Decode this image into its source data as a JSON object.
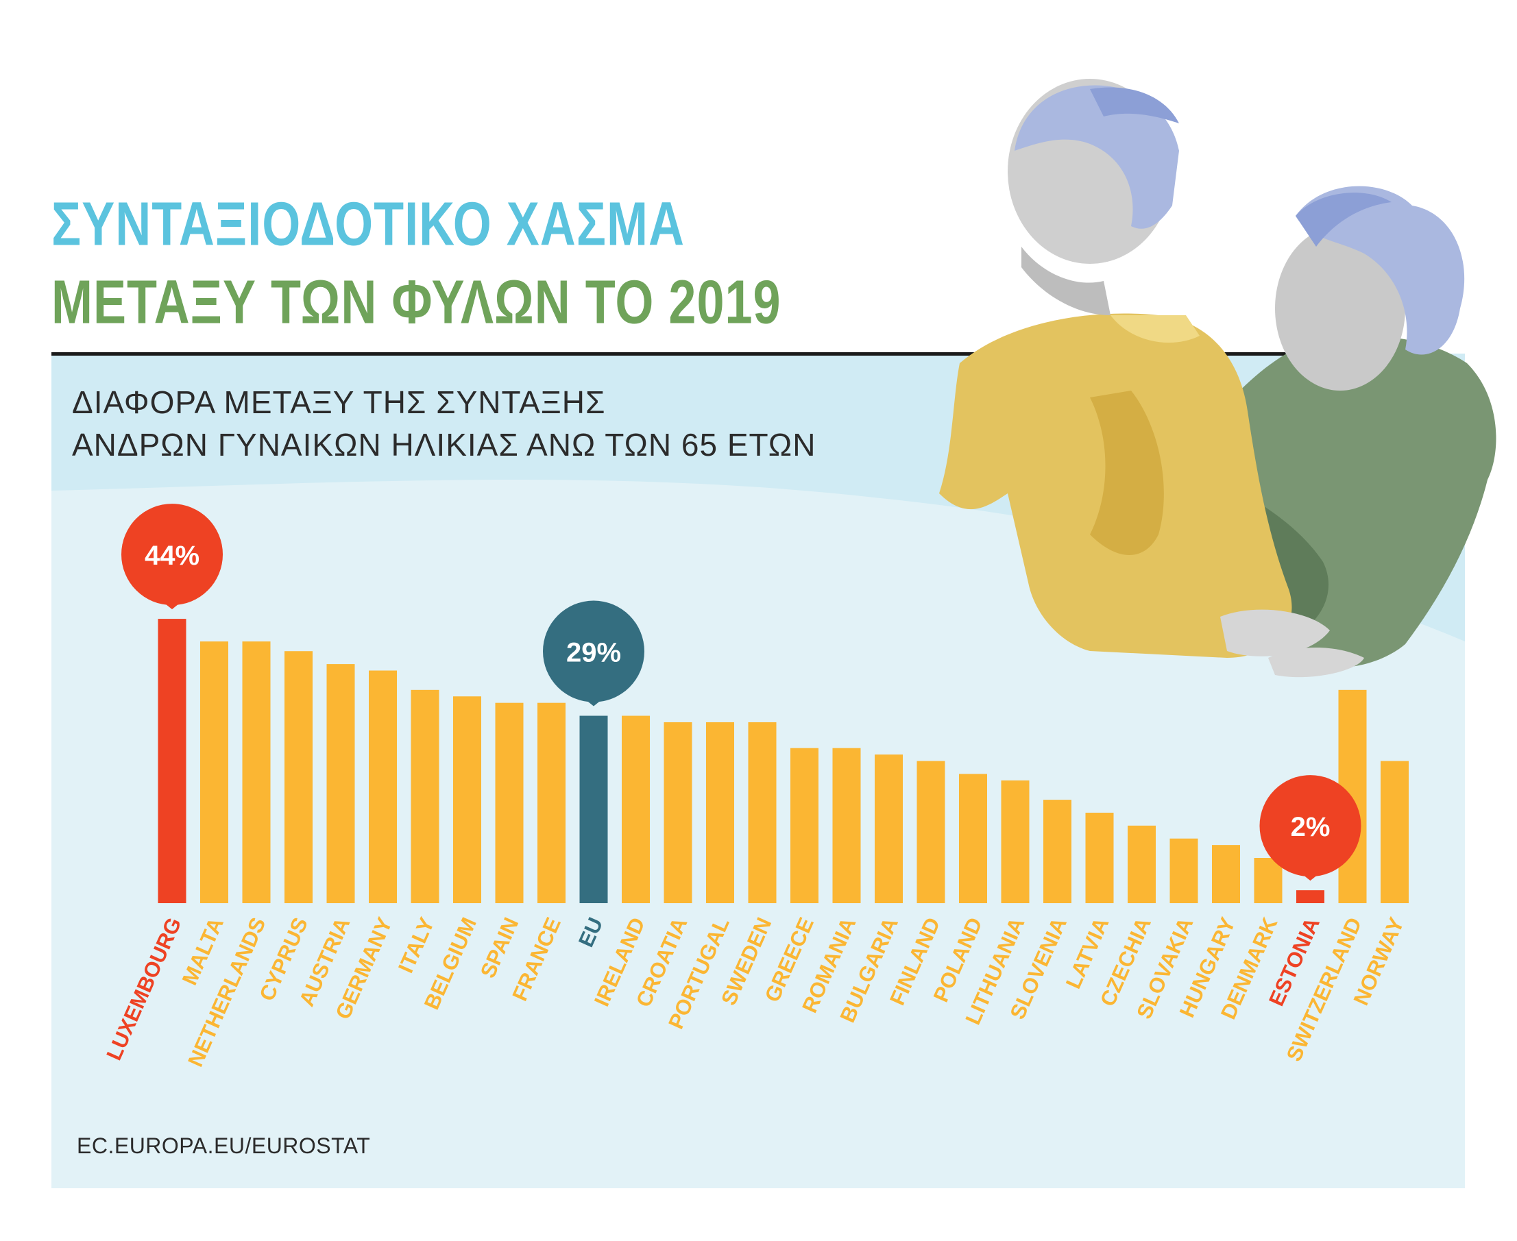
{
  "title_line1": "ΣΥΝΤΑΞΙΟΔΟΤΙΚΟ ΧΑΣΜΑ",
  "title_line2": "ΜΕΤΑΞΥ ΤΩΝ ΦΥΛΩΝ ΤΟ 2019",
  "subtitle_line1": "ΔΙΑΦΟΡΑ ΜΕΤΑΞΥ ΤΗΣ ΣΥΝΤΑΞΗΣ",
  "subtitle_line2": "ΑΝΔΡΩΝ ΓΥΝΑΙΚΩΝ ΗΛΙΚΙΑΣ ΑΝΩ ΤΩΝ 65 ΕΤΩΝ",
  "source": "EC.EUROPA.EU/EUROSTAT",
  "colors": {
    "default_bar": "#fbb633",
    "highlight_bar": "#ee4223",
    "eu_bar": "#346e80",
    "title_blue": "#5bc3de",
    "title_green": "#6fa35a"
  },
  "chart_data": {
    "type": "bar",
    "categories": [
      "LUXEMBOURG",
      "MALTA",
      "NETHERLANDS",
      "CYPRUS",
      "AUSTRIA",
      "GERMANY",
      "ITALY",
      "BELGIUM",
      "SPAIN",
      "FRANCE",
      "EU",
      "IRELAND",
      "CROATIA",
      "PORTUGAL",
      "SWEDEN",
      "GREECE",
      "ROMANIA",
      "BULGARIA",
      "FINLAND",
      "POLAND",
      "LITHUANIA",
      "SLOVENIA",
      "LATVIA",
      "CZECHIA",
      "SLOVAKIA",
      "HUNGARY",
      "DENMARK",
      "ESTONIA",
      "SWITZERLAND",
      "NORWAY"
    ],
    "values": [
      44,
      40.5,
      40.5,
      39,
      37,
      36,
      33,
      32,
      31,
      31,
      29,
      29,
      28,
      28,
      28,
      24,
      24,
      23,
      22,
      20,
      19,
      16,
      14,
      12,
      10,
      9,
      7,
      2,
      33,
      22
    ],
    "highlight": [
      "LUXEMBOURG",
      "ESTONIA"
    ],
    "eu_category": "EU",
    "callouts": [
      {
        "category": "LUXEMBOURG",
        "label": "44%",
        "color": "#ee4223"
      },
      {
        "category": "EU",
        "label": "29%",
        "color": "#346e80"
      },
      {
        "category": "ESTONIA",
        "label": "2%",
        "color": "#ee4223"
      }
    ],
    "ylim": [
      0,
      46
    ],
    "xlabel": "",
    "ylabel": ""
  }
}
